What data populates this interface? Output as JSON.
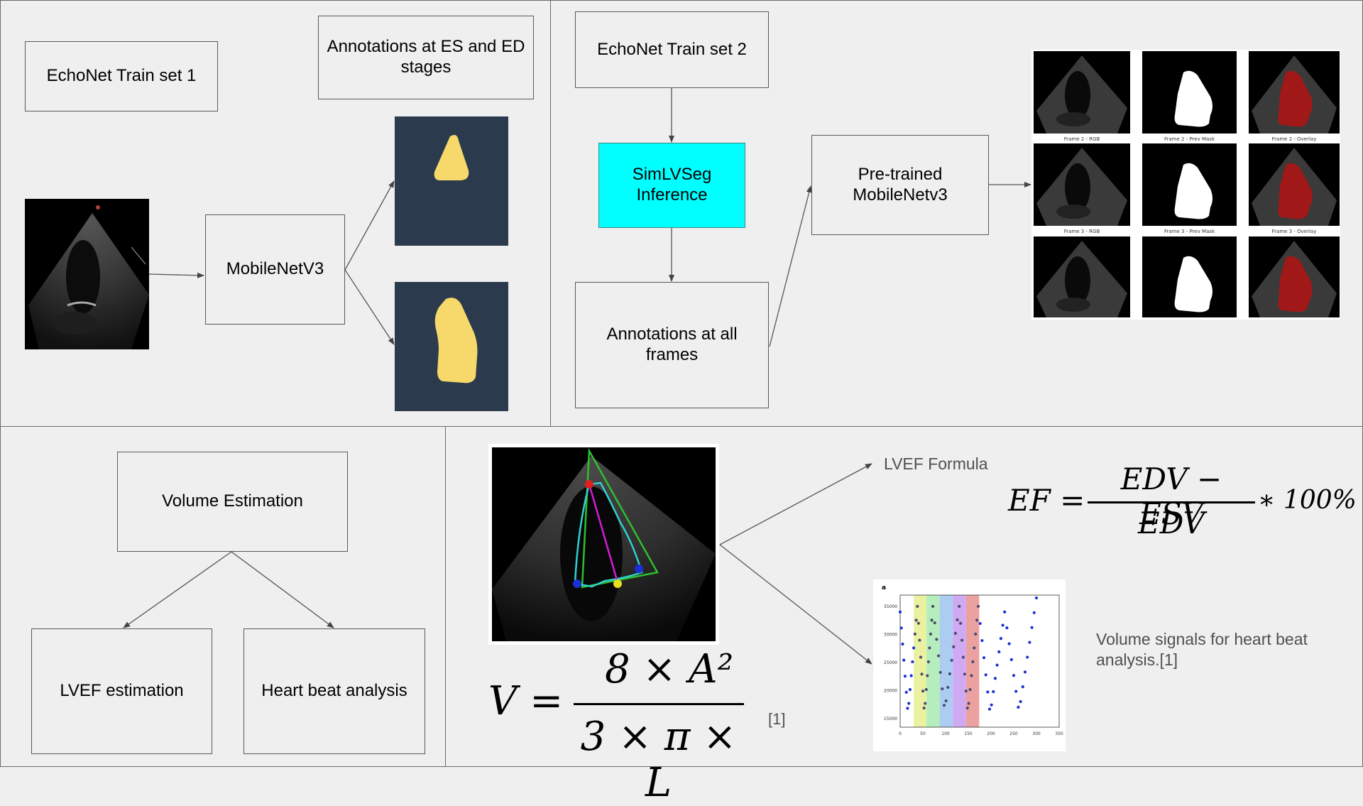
{
  "boxes": {
    "train1": "EchoNet Train set 1",
    "annot_es_ed": "Annotations at ES and ED stages",
    "mobilenet": "MobileNetV3",
    "train2": "EchoNet Train set 2",
    "simlvseg": "SimLVSeg Inference",
    "annot_all": "Annotations at all frames",
    "pretrained": "Pre-trained MobileNetv3",
    "volume": "Volume Estimation",
    "lvef_est": "LVEF estimation",
    "heartbeat": "Heart beat analysis"
  },
  "tiles": {
    "row1": [
      "Frame 2 - RGB",
      "Frame 2 - Prev Mask",
      "Frame 2 - Overlay"
    ],
    "row2": [
      "Frame 3 - RGB",
      "Frame 3 - Prev Mask",
      "Frame 3 - Overlay"
    ]
  },
  "labels": {
    "lvef_formula": "LVEF Formula",
    "volume_signals": "Volume signals for heart beat analysis.[1]",
    "citation": "[1]"
  },
  "formulas": {
    "ef_lhs": "EF =",
    "ef_num": "EDV − ESV",
    "ef_den": "EDV",
    "ef_tail": "∗ 100%",
    "v_lhs": "V =",
    "v_num": "8 × A²",
    "v_den": "3 × π × L"
  },
  "chart_data": {
    "type": "scatter",
    "panel_label": "a",
    "xticks": [
      "0",
      "50",
      "100",
      "150",
      "200",
      "250",
      "300",
      "350"
    ],
    "yticks": [
      "35000",
      "30000",
      "25000",
      "20000",
      "15000"
    ],
    "xlim": [
      0,
      350
    ],
    "ylim": [
      13500,
      37000
    ],
    "bands": [
      {
        "x0": 30,
        "x1": 58,
        "color": "#e6ef8f"
      },
      {
        "x0": 58,
        "x1": 87,
        "color": "#a8ebb0"
      },
      {
        "x0": 87,
        "x1": 116,
        "color": "#9fc3ee"
      },
      {
        "x0": 116,
        "x1": 145,
        "color": "#c79af0"
      },
      {
        "x0": 145,
        "x1": 174,
        "color": "#e8918e"
      }
    ],
    "cycles": [
      {
        "start": 0,
        "peak": 34000,
        "trough": 16000
      },
      {
        "start": 38,
        "peak": 35000,
        "trough": 16000
      },
      {
        "start": 72,
        "peak": 35000,
        "trough": 16500
      },
      {
        "start": 130,
        "peak": 35000,
        "trough": 16000
      },
      {
        "start": 172,
        "peak": 35000,
        "trough": 15800
      },
      {
        "start": 230,
        "peak": 34000,
        "trough": 16200
      },
      {
        "start": 300,
        "peak": 36500,
        "trough": 16000
      }
    ]
  },
  "colors": {
    "mask_bg": "#2c3a4e",
    "mask_fill": "#f7d86a",
    "cyan": "#00ffff",
    "overlay_red": "#a01818",
    "point_blue": "#1a2fd6"
  }
}
